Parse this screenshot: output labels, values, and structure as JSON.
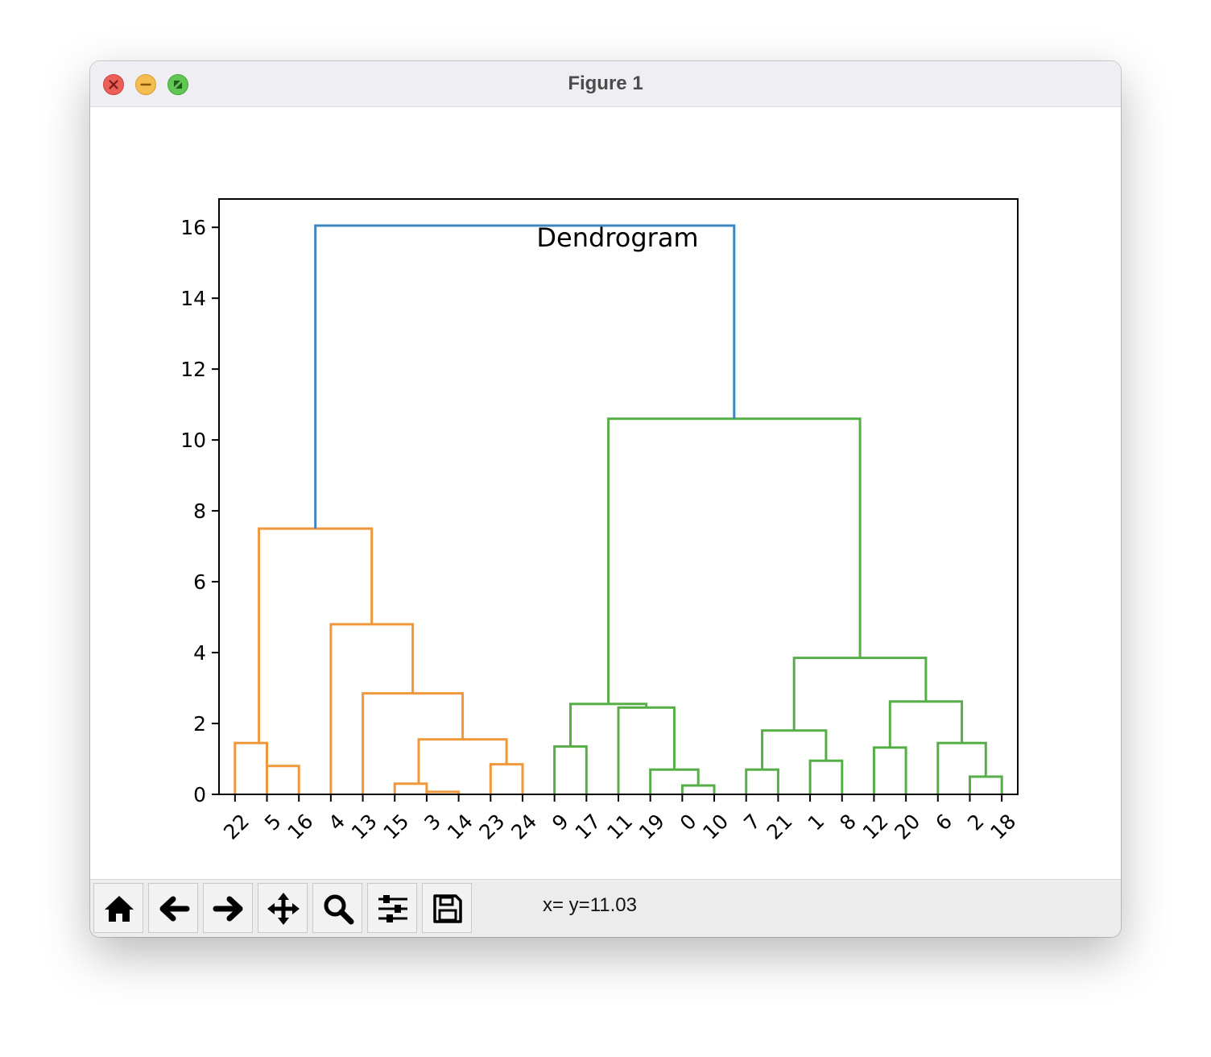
{
  "window": {
    "title": "Figure 1"
  },
  "toolbar": {
    "buttons": [
      {
        "name": "home-button",
        "icon": "home-icon"
      },
      {
        "name": "back-button",
        "icon": "arrow-left-icon"
      },
      {
        "name": "forward-button",
        "icon": "arrow-right-icon"
      },
      {
        "name": "pan-button",
        "icon": "move-icon"
      },
      {
        "name": "zoom-button",
        "icon": "search-icon"
      },
      {
        "name": "configure-subplots-button",
        "icon": "sliders-icon"
      },
      {
        "name": "save-button",
        "icon": "floppy-icon"
      }
    ],
    "coordinates": "x= y=11.03"
  },
  "chart_data": {
    "type": "dendrogram",
    "title": "Dendrogram",
    "xlabel": "",
    "ylabel": "",
    "ylim": [
      0,
      16.8
    ],
    "yticks": [
      0,
      2,
      4,
      6,
      8,
      10,
      12,
      14,
      16
    ],
    "leaf_labels": [
      "22",
      "5",
      "16",
      "4",
      "13",
      "15",
      "3",
      "14",
      "23",
      "24",
      "9",
      "17",
      "11",
      "19",
      "0",
      "10",
      "7",
      "21",
      "1",
      "8",
      "12",
      "20",
      "6",
      "2",
      "18"
    ],
    "colors": {
      "above_threshold": "#3f85c0",
      "cluster_1": "#f0973a",
      "cluster_2": "#56ae47"
    },
    "links": [
      {
        "x": [
          0,
          0,
          1,
          1
        ],
        "y": [
          0,
          1.45,
          1.45,
          0.8
        ],
        "color": "cluster_1"
      },
      {
        "x": [
          1,
          1,
          2,
          2
        ],
        "y": [
          0,
          0.8,
          0.8,
          0
        ],
        "color": "cluster_1"
      },
      {
        "x": [
          5,
          5,
          6,
          6
        ],
        "y": [
          0,
          0.3,
          0.3,
          0.07
        ],
        "color": "cluster_1"
      },
      {
        "x": [
          6,
          6,
          7,
          7
        ],
        "y": [
          0,
          0.07,
          0.07,
          0
        ],
        "color": "cluster_1"
      },
      {
        "x": [
          8,
          8,
          9,
          9
        ],
        "y": [
          0,
          0.85,
          0.85,
          0
        ],
        "color": "cluster_1"
      },
      {
        "x": [
          5.75,
          5.75,
          8.5,
          8.5
        ],
        "y": [
          0.3,
          1.55,
          1.55,
          0.85
        ],
        "color": "cluster_1"
      },
      {
        "x": [
          4,
          4,
          7.125,
          7.125
        ],
        "y": [
          0,
          2.85,
          2.85,
          1.55
        ],
        "color": "cluster_1"
      },
      {
        "x": [
          3,
          3,
          5.5625,
          5.5625
        ],
        "y": [
          0,
          4.8,
          4.8,
          2.85
        ],
        "color": "cluster_1"
      },
      {
        "x": [
          0.75,
          0.75,
          4.28125,
          4.28125
        ],
        "y": [
          1.45,
          7.5,
          7.5,
          4.8
        ],
        "color": "cluster_1"
      },
      {
        "x": [
          10,
          10,
          11,
          11
        ],
        "y": [
          0,
          1.35,
          1.35,
          0
        ],
        "color": "cluster_2"
      },
      {
        "x": [
          14,
          14,
          15,
          15
        ],
        "y": [
          0,
          0.25,
          0.25,
          0
        ],
        "color": "cluster_2"
      },
      {
        "x": [
          13,
          13,
          14.5,
          14.5
        ],
        "y": [
          0,
          0.7,
          0.7,
          0.25
        ],
        "color": "cluster_2"
      },
      {
        "x": [
          12,
          12,
          13.75,
          13.75
        ],
        "y": [
          0,
          2.45,
          2.45,
          0.7
        ],
        "color": "cluster_2"
      },
      {
        "x": [
          10.5,
          10.5,
          12.875,
          12.875
        ],
        "y": [
          1.35,
          2.55,
          2.55,
          2.45
        ],
        "color": "cluster_2"
      },
      {
        "x": [
          16,
          16,
          17,
          17
        ],
        "y": [
          0,
          0.7,
          0.7,
          0
        ],
        "color": "cluster_2"
      },
      {
        "x": [
          18,
          18,
          19,
          19
        ],
        "y": [
          0,
          0.95,
          0.95,
          0
        ],
        "color": "cluster_2"
      },
      {
        "x": [
          16.5,
          16.5,
          18.5,
          18.5
        ],
        "y": [
          0.7,
          1.8,
          1.8,
          0.95
        ],
        "color": "cluster_2"
      },
      {
        "x": [
          20,
          20,
          21,
          21
        ],
        "y": [
          0,
          1.32,
          1.32,
          0
        ],
        "color": "cluster_2"
      },
      {
        "x": [
          23,
          23,
          24,
          24
        ],
        "y": [
          0,
          0.5,
          0.5,
          0
        ],
        "color": "cluster_2"
      },
      {
        "x": [
          22,
          22,
          23.5,
          23.5
        ],
        "y": [
          0,
          1.45,
          1.45,
          0.5
        ],
        "color": "cluster_2"
      },
      {
        "x": [
          20.5,
          20.5,
          22.75,
          22.75
        ],
        "y": [
          1.32,
          2.62,
          2.62,
          1.45
        ],
        "color": "cluster_2"
      },
      {
        "x": [
          17.5,
          17.5,
          21.625,
          21.625
        ],
        "y": [
          1.8,
          3.85,
          3.85,
          2.62
        ],
        "color": "cluster_2"
      },
      {
        "x": [
          11.6875,
          11.6875,
          19.5625,
          19.5625
        ],
        "y": [
          2.55,
          10.6,
          10.6,
          3.85
        ],
        "color": "cluster_2"
      },
      {
        "x": [
          2.515625,
          2.515625,
          15.625,
          15.625
        ],
        "y": [
          7.5,
          16.05,
          16.05,
          10.6
        ],
        "color": "above_threshold"
      }
    ]
  }
}
